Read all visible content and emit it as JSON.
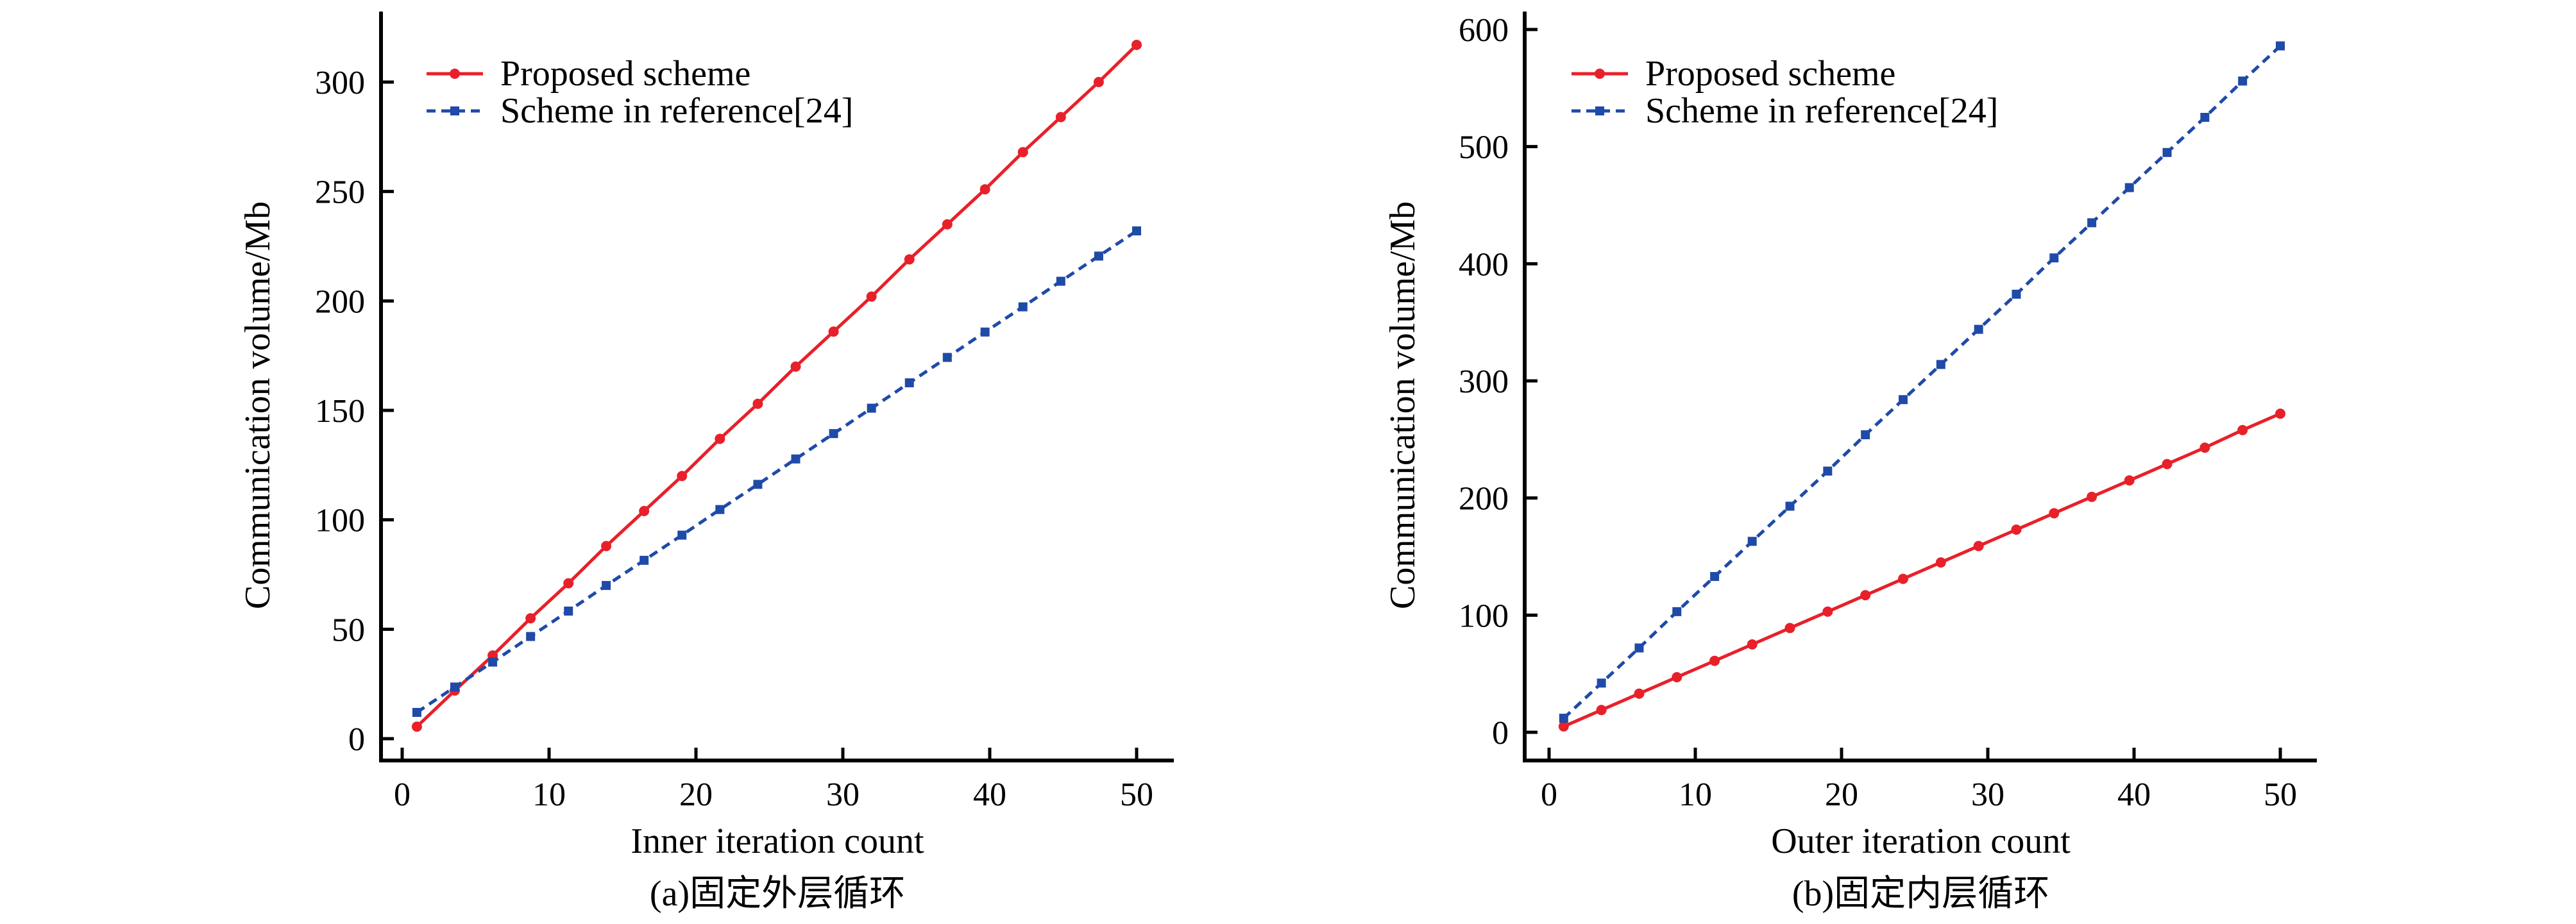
{
  "chart_data": [
    {
      "type": "line",
      "panel_caption": "(a)固定外层循环",
      "xlabel": "Inner iteration count",
      "ylabel": "Communication volume/Mb",
      "xlim": [
        -1,
        52
      ],
      "ylim": [
        -10,
        332
      ],
      "xticks": [
        0,
        10,
        20,
        30,
        40,
        50
      ],
      "yticks": [
        0,
        50,
        100,
        150,
        200,
        250,
        300
      ],
      "legend_position": "top-left",
      "x": [
        1,
        3.58,
        6.16,
        8.74,
        11.32,
        13.89,
        16.47,
        19.05,
        21.63,
        24.21,
        26.79,
        29.37,
        31.95,
        34.53,
        37.11,
        39.68,
        42.26,
        44.84,
        47.42,
        50
      ],
      "series": [
        {
          "name": "Proposed scheme",
          "color": "#e8202a",
          "style": "solid",
          "values": [
            5.5,
            22,
            38,
            55,
            71,
            88,
            104,
            120,
            137,
            153,
            170,
            186,
            202,
            219,
            235,
            251,
            268,
            284,
            300,
            317
          ]
        },
        {
          "name": "Scheme in reference[24]",
          "color": "#1f4aa8",
          "style": "dashed",
          "values": [
            12,
            23.6,
            35,
            46.7,
            58.3,
            70,
            81.5,
            93,
            104.7,
            116.2,
            127.8,
            139.4,
            151,
            162.6,
            174.2,
            185.8,
            197.3,
            209,
            220.5,
            232
          ]
        }
      ]
    },
    {
      "type": "line",
      "panel_caption": "(b)固定内层循环",
      "xlabel": "Outer iteration count",
      "ylabel": "Communication volume/Mb",
      "xlim": [
        -1,
        52
      ],
      "ylim": [
        -20,
        612
      ],
      "xticks": [
        0,
        10,
        20,
        30,
        40,
        50
      ],
      "yticks": [
        0,
        100,
        200,
        300,
        400,
        500,
        600
      ],
      "legend_position": "top-left",
      "x": [
        1,
        3.58,
        6.16,
        8.74,
        11.32,
        13.89,
        16.47,
        19.05,
        21.63,
        24.21,
        26.79,
        29.37,
        31.95,
        34.53,
        37.11,
        39.68,
        42.26,
        44.84,
        47.42,
        50
      ],
      "series": [
        {
          "name": "Proposed scheme",
          "color": "#e8202a",
          "style": "solid",
          "values": [
            5,
            19,
            33,
            47,
            61,
            75,
            89,
            103,
            117,
            131,
            145,
            159,
            173,
            187,
            201,
            215,
            229,
            243,
            258,
            272
          ]
        },
        {
          "name": "Scheme in reference[24]",
          "color": "#1f4aa8",
          "style": "dashed",
          "values": [
            12,
            42,
            72,
            103,
            133,
            163,
            193,
            223,
            254,
            284,
            314,
            344,
            374,
            405,
            435,
            465,
            495,
            525,
            556,
            586
          ]
        }
      ]
    }
  ]
}
